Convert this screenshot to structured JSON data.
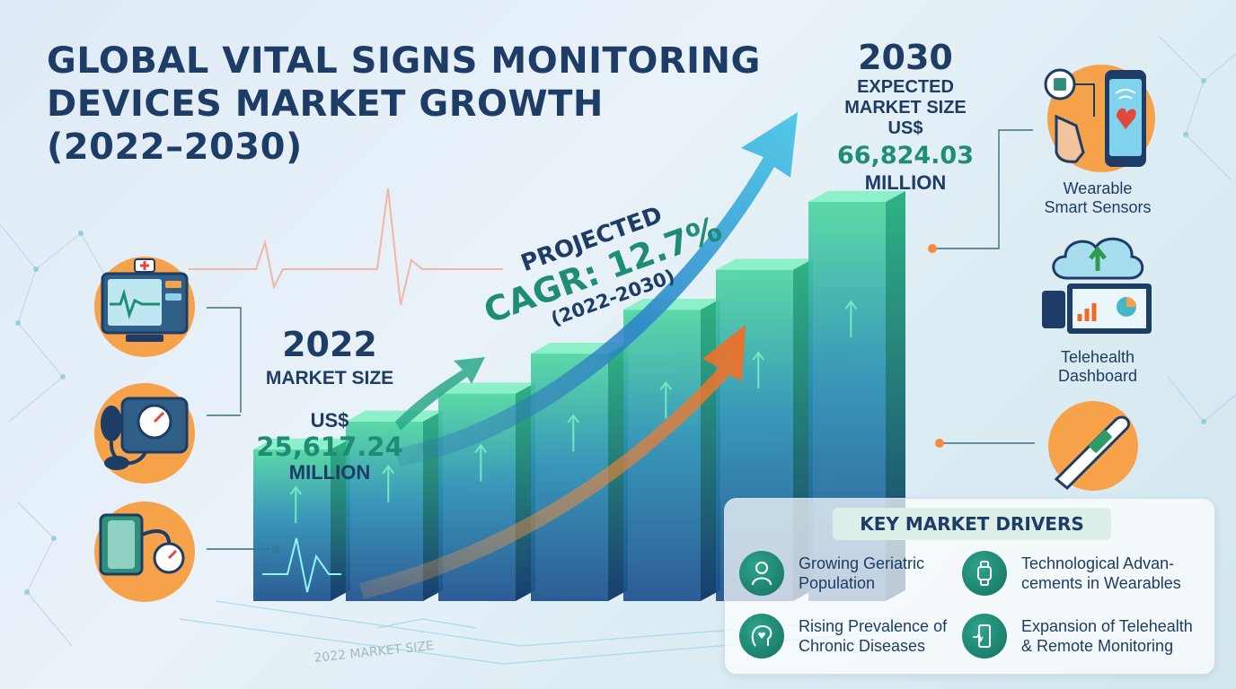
{
  "title": {
    "line1": "GLOBAL VITAL SIGNS MONITORING",
    "line2": "DEVICES MARKET GROWTH",
    "line3": "(2022–2030)"
  },
  "market_2022": {
    "year": "2022",
    "label": "MARKET SIZE",
    "currency": "US$",
    "value": "25,617.24",
    "unit": "MILLION"
  },
  "market_2030": {
    "year": "2030",
    "label_line1": "EXPECTED",
    "label_line2": "MARKET SIZE",
    "currency": "US$",
    "value": "66,824.03",
    "unit": "MILLION"
  },
  "cagr": {
    "line1": "PROJECTED",
    "line2": "CAGR: 12.7%",
    "line3": "(2022-2030)"
  },
  "right_features": [
    {
      "line1": "Wearable",
      "line2": "Smart Sensors",
      "icon": "wearable-sensor-icon"
    },
    {
      "line1": "Telehealth",
      "line2": "Dashboard",
      "icon": "telehealth-dashboard-icon"
    },
    {
      "line1": "",
      "line2": "",
      "icon": "thermometer-icon"
    }
  ],
  "left_icons": [
    "patient-monitor-icon",
    "blood-pressure-monitor-icon",
    "sphygmomanometer-icon"
  ],
  "floor_label": "2022 MARKET SIZE",
  "drivers": {
    "title": "KEY MARKET DRIVERS",
    "items": [
      {
        "line1": "Growing Geriatric",
        "line2": "Population",
        "icon": "elderly-person-icon"
      },
      {
        "line1": "Technological Advan-",
        "line2": "cements in Wearables",
        "icon": "smartwatch-icon"
      },
      {
        "line1": "Rising Prevalence of",
        "line2": "Chronic Diseases",
        "icon": "heart-head-icon"
      },
      {
        "line1": "Expansion of Telehealth",
        "line2": "& Remote Monitoring",
        "icon": "remote-phone-icon"
      }
    ]
  },
  "colors": {
    "navy": "#1d3c66",
    "teal": "#1f8d75",
    "bar_green": "#3ed39a",
    "bar_blue": "#2a6fb8",
    "arrow_orange": "#f57a2a",
    "icon_orange": "#f6a24a"
  },
  "chart_data": {
    "type": "bar",
    "categories": [
      "2022",
      "",
      "",
      "",
      "",
      "",
      "2030"
    ],
    "values": [
      25617.24,
      null,
      null,
      null,
      null,
      null,
      66824.03
    ],
    "bar_relative_heights": [
      0.38,
      0.45,
      0.52,
      0.62,
      0.73,
      0.83,
      1.0
    ],
    "cagr_percent": 12.7,
    "unit": "US$ Million",
    "grid": false
  }
}
